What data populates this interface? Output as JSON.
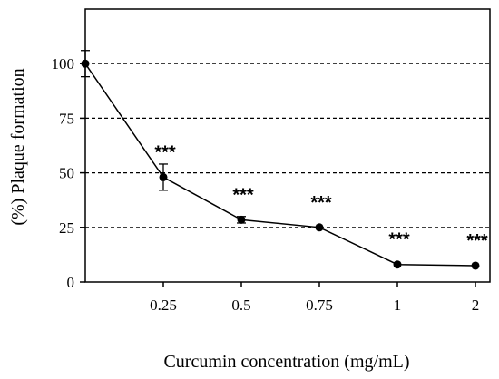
{
  "chart_data": {
    "type": "line",
    "xlabel": "Curcumin concentration (mg/mL)",
    "ylabel": "(%) Plaque formation",
    "categories": [
      "",
      "0.25",
      "0.5",
      "0.75",
      "1",
      "2"
    ],
    "series": [
      {
        "values": [
          100,
          48,
          28.5,
          25,
          8,
          7.5
        ],
        "error": [
          6,
          6,
          1.5,
          0.5,
          0.5,
          0.5
        ],
        "annotations": [
          "",
          "***",
          "***",
          "***",
          "***",
          "***"
        ],
        "color": "#000000"
      }
    ],
    "ylim": [
      0,
      125
    ],
    "yticks": [
      0,
      25,
      50,
      75,
      100
    ],
    "gridlines": [
      25,
      50,
      75,
      100
    ],
    "grid_style": "dashed horizontal"
  }
}
